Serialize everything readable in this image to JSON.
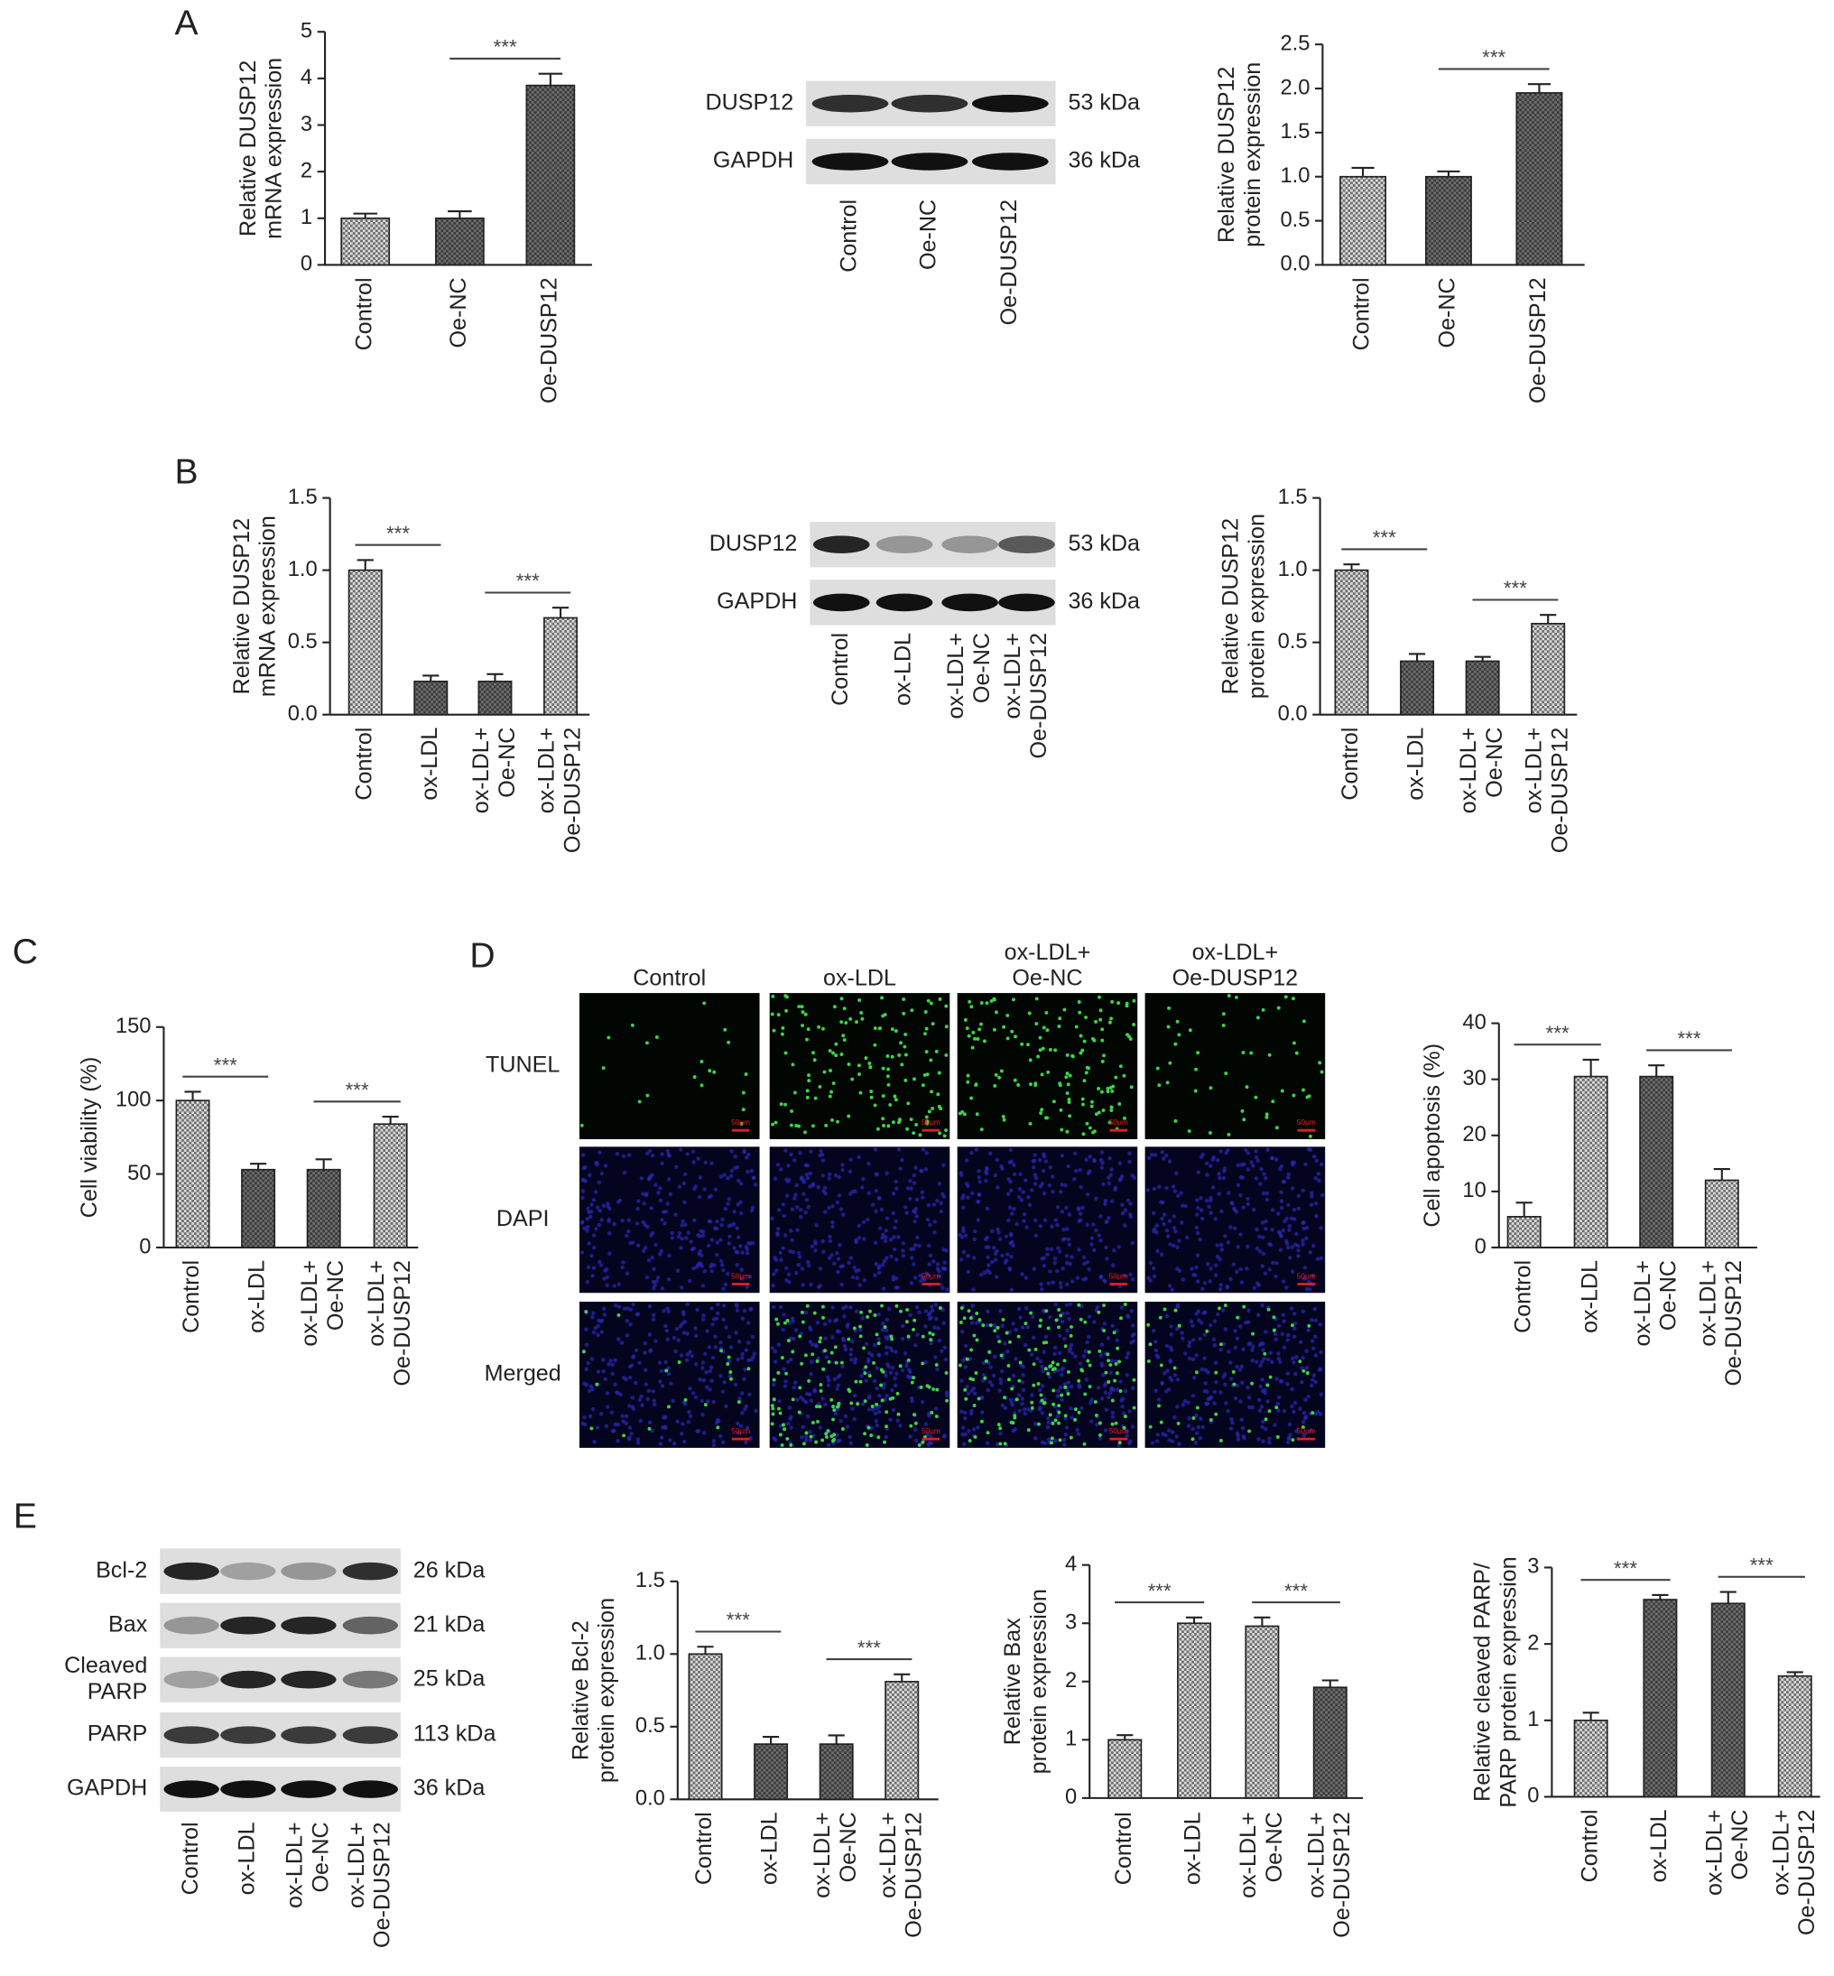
{
  "panel_labels": [
    "A",
    "B",
    "C",
    "D",
    "E"
  ],
  "chart_data": [
    {
      "type": "bar",
      "y_label": "Relative DUSP12\nmRNA expression",
      "categories": [
        "Control",
        "Oe-NC",
        "Oe-DUSP12"
      ],
      "values": [
        1.0,
        1.0,
        3.85
      ],
      "errors": [
        0.1,
        0.15,
        0.25
      ],
      "bar_colors": [
        "#dcdcdc",
        "#6e6e6e",
        "#6e6e6e"
      ],
      "ylim": [
        0,
        5
      ],
      "yticks": [
        0,
        1,
        2,
        3,
        4,
        5
      ],
      "significance": [
        {
          "from": 1,
          "to": 2,
          "label": "***"
        }
      ]
    },
    {
      "type": "bar",
      "y_label": "Relative DUSP12\nprotein expression",
      "categories": [
        "Control",
        "Oe-NC",
        "Oe-DUSP12"
      ],
      "values": [
        1.0,
        1.0,
        1.95
      ],
      "errors": [
        0.1,
        0.06,
        0.1
      ],
      "bar_colors": [
        "#dcdcdc",
        "#6e6e6e",
        "#6e6e6e"
      ],
      "ylim": [
        0,
        2.5
      ],
      "yticks": [
        {
          "value": 0,
          "label": "0.0"
        },
        0.5,
        {
          "value": 1,
          "label": "1.0"
        },
        1.5,
        {
          "value": 2,
          "label": "2.0"
        },
        2.5
      ],
      "significance": [
        {
          "from": 1,
          "to": 2,
          "label": "***"
        }
      ]
    },
    {
      "type": "bar",
      "y_label": "Relative DUSP12\nmRNA expression",
      "categories": [
        "Control",
        "ox-LDL",
        "ox-LDL+\nOe-NC",
        "ox-LDL+\nOe-DUSP12"
      ],
      "values": [
        1.0,
        0.23,
        0.23,
        0.67
      ],
      "errors": [
        0.07,
        0.04,
        0.05,
        0.07
      ],
      "bar_colors": [
        "#dcdcdc",
        "#6e6e6e",
        "#6e6e6e",
        "#dcdcdc"
      ],
      "ylim": [
        0,
        1.5
      ],
      "yticks": [
        {
          "value": 0,
          "label": "0.0"
        },
        0.5,
        {
          "value": 1,
          "label": "1.0"
        },
        1.5
      ],
      "significance": [
        {
          "from": 0,
          "to": 1,
          "label": "***"
        },
        {
          "from": 2,
          "to": 3,
          "label": "***"
        }
      ]
    },
    {
      "type": "bar",
      "y_label": "Relative DUSP12\nprotein expression",
      "categories": [
        "Control",
        "ox-LDL",
        "ox-LDL+\nOe-NC",
        "ox-LDL+\nOe-DUSP12"
      ],
      "values": [
        1.0,
        0.37,
        0.37,
        0.63
      ],
      "errors": [
        0.04,
        0.05,
        0.03,
        0.06
      ],
      "bar_colors": [
        "#dcdcdc",
        "#6e6e6e",
        "#6e6e6e",
        "#dcdcdc"
      ],
      "ylim": [
        0,
        1.5
      ],
      "yticks": [
        {
          "value": 0,
          "label": "0.0"
        },
        0.5,
        {
          "value": 1,
          "label": "1.0"
        },
        1.5
      ],
      "significance": [
        {
          "from": 0,
          "to": 1,
          "label": "***"
        },
        {
          "from": 2,
          "to": 3,
          "label": "***"
        }
      ]
    },
    {
      "type": "bar",
      "y_label": "Cell viability (%)",
      "categories": [
        "Control",
        "ox-LDL",
        "ox-LDL+\nOe-NC",
        "ox-LDL+\nOe-DUSP12"
      ],
      "values": [
        100,
        53,
        53,
        84
      ],
      "errors": [
        6,
        4,
        7,
        5
      ],
      "bar_colors": [
        "#dcdcdc",
        "#6e6e6e",
        "#6e6e6e",
        "#dcdcdc"
      ],
      "ylim": [
        0,
        150
      ],
      "yticks": [
        0,
        50,
        100,
        150
      ],
      "significance": [
        {
          "from": 0,
          "to": 1,
          "label": "***"
        },
        {
          "from": 2,
          "to": 3,
          "label": "***"
        }
      ]
    },
    {
      "type": "bar",
      "y_label": "Cell apoptosis (%)",
      "categories": [
        "Control",
        "ox-LDL",
        "ox-LDL+\nOe-NC",
        "ox-LDL+\nOe-DUSP12"
      ],
      "values": [
        5.5,
        30.5,
        30.5,
        12
      ],
      "errors": [
        2.5,
        3,
        2,
        2
      ],
      "bar_colors": [
        "#dcdcdc",
        "#dcdcdc",
        "#6e6e6e",
        "#dcdcdc"
      ],
      "ylim": [
        0,
        40
      ],
      "yticks": [
        0,
        10,
        20,
        30,
        40
      ],
      "significance": [
        {
          "from": 0,
          "to": 1,
          "label": "***"
        },
        {
          "from": 2,
          "to": 3,
          "label": "***"
        }
      ]
    },
    {
      "type": "bar",
      "y_label": "Relative Bcl-2\nprotein expression",
      "categories": [
        "Control",
        "ox-LDL",
        "ox-LDL+\nOe-NC",
        "ox-LDL+\nOe-DUSP12"
      ],
      "values": [
        1.0,
        0.38,
        0.38,
        0.81
      ],
      "errors": [
        0.05,
        0.05,
        0.06,
        0.05
      ],
      "bar_colors": [
        "#dcdcdc",
        "#6e6e6e",
        "#6e6e6e",
        "#dcdcdc"
      ],
      "ylim": [
        0,
        1.5
      ],
      "yticks": [
        {
          "value": 0,
          "label": "0.0"
        },
        0.5,
        {
          "value": 1,
          "label": "1.0"
        },
        1.5
      ],
      "significance": [
        {
          "from": 0,
          "to": 1,
          "label": "***"
        },
        {
          "from": 2,
          "to": 3,
          "label": "***"
        }
      ]
    },
    {
      "type": "bar",
      "y_label": "Relative Bax\nprotein expression",
      "categories": [
        "Control",
        "ox-LDL",
        "ox-LDL+\nOe-NC",
        "ox-LDL+\nOe-DUSP12"
      ],
      "values": [
        1.0,
        3.0,
        2.95,
        1.9
      ],
      "errors": [
        0.08,
        0.1,
        0.15,
        0.12
      ],
      "bar_colors": [
        "#dcdcdc",
        "#dcdcdc",
        "#dcdcdc",
        "#6e6e6e"
      ],
      "ylim": [
        0,
        4
      ],
      "yticks": [
        0,
        1,
        2,
        3,
        4
      ],
      "significance": [
        {
          "from": 0,
          "to": 1,
          "label": "***"
        },
        {
          "from": 2,
          "to": 3,
          "label": "***"
        }
      ]
    },
    {
      "type": "bar",
      "y_label": "Relative cleaved PARP/\nPARP protein expression",
      "categories": [
        "Control",
        "ox-LDL",
        "ox-LDL+\nOe-NC",
        "ox-LDL+\nOe-DUSP12"
      ],
      "values": [
        1.0,
        2.58,
        2.53,
        1.58
      ],
      "errors": [
        0.1,
        0.06,
        0.15,
        0.05
      ],
      "bar_colors": [
        "#dcdcdc",
        "#6e6e6e",
        "#6e6e6e",
        "#dcdcdc"
      ],
      "ylim": [
        0,
        3
      ],
      "yticks": [
        0,
        1,
        2,
        3
      ],
      "significance": [
        {
          "from": 0,
          "to": 1,
          "label": "***"
        },
        {
          "from": 2,
          "to": 3,
          "label": "***"
        }
      ]
    }
  ],
  "blots": [
    {
      "rows": [
        {
          "label": "DUSP12",
          "size": "53 kDa"
        },
        {
          "label": "GAPDH",
          "size": "36 kDa"
        }
      ],
      "lanes": [
        "Control",
        "Oe-NC",
        "Oe-DUSP12"
      ]
    },
    {
      "rows": [
        {
          "label": "DUSP12",
          "size": "53 kDa"
        },
        {
          "label": "GAPDH",
          "size": "36 kDa"
        }
      ],
      "lanes": [
        "Control",
        "ox-LDL",
        "ox-LDL+\nOe-NC",
        "ox-LDL+\nOe-DUSP12"
      ]
    },
    {
      "rows": [
        {
          "label": "Bcl-2",
          "size": "26 kDa"
        },
        {
          "label": "Bax",
          "size": "21 kDa"
        },
        {
          "label": "Cleaved\nPARP",
          "size": "25 kDa"
        },
        {
          "label": "PARP",
          "size": "113 kDa"
        },
        {
          "label": "GAPDH",
          "size": "36 kDa"
        }
      ],
      "lanes": [
        "Control",
        "ox-LDL",
        "ox-LDL+\nOe-NC",
        "ox-LDL+\nOe-DUSP12"
      ]
    }
  ],
  "microscopy": {
    "columns": [
      "Control",
      "ox-LDL",
      "ox-LDL+\nOe-NC",
      "ox-LDL+\nOe-DUSP12"
    ],
    "rows": [
      "TUNEL",
      "DAPI",
      "Merged"
    ],
    "scale_bar": "50μm"
  }
}
